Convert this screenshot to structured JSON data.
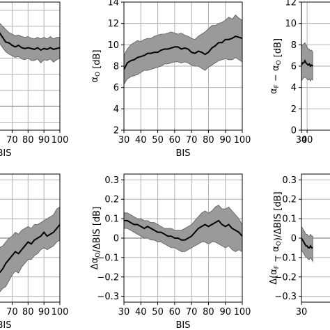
{
  "chart_data": [
    {
      "id": "top-left",
      "type": "area",
      "title": "",
      "xlabel": "BIS",
      "ylabel": "",
      "xlim": [
        58,
        100
      ],
      "ylim": [
        -3,
        13
      ],
      "xticks": [
        70,
        80,
        90,
        100
      ],
      "yticks": [],
      "grid": true,
      "x": [
        58,
        60,
        62,
        64,
        66,
        68,
        70,
        72,
        74,
        76,
        78,
        80,
        82,
        84,
        86,
        88,
        90,
        92,
        94,
        96,
        98,
        100
      ],
      "series": [
        {
          "mean": [
            9.8,
            9.6,
            9.2,
            8.6,
            8.0,
            7.9,
            7.6,
            7.4,
            7.6,
            7.3,
            7.2,
            7.3,
            7.2,
            7.1,
            7.3,
            7.0,
            7.2,
            7.1,
            7.3,
            7.1,
            7.2,
            7.3
          ],
          "upper": [
            11.0,
            10.7,
            10.4,
            10.0,
            9.6,
            9.2,
            9.0,
            8.8,
            8.9,
            8.7,
            8.6,
            8.7,
            8.5,
            8.4,
            8.6,
            8.4,
            8.6,
            8.4,
            8.7,
            8.4,
            8.6,
            8.6
          ],
          "lower": [
            8.6,
            8.4,
            7.9,
            7.3,
            6.8,
            6.5,
            6.3,
            6.1,
            6.2,
            5.9,
            5.8,
            6.0,
            5.7,
            5.7,
            5.9,
            5.4,
            5.8,
            5.7,
            5.9,
            5.5,
            5.8,
            6.0
          ]
        }
      ]
    },
    {
      "id": "top-middle",
      "type": "area",
      "title": "",
      "xlabel": "BIS",
      "ylabel": "αO [dB]",
      "xlim": [
        30,
        100
      ],
      "ylim": [
        2,
        14
      ],
      "xticks": [
        30,
        40,
        50,
        60,
        70,
        80,
        90,
        100
      ],
      "yticks": [
        2,
        4,
        6,
        8,
        10,
        12,
        14
      ],
      "grid": true,
      "x": [
        30,
        32,
        34,
        36,
        38,
        40,
        42,
        44,
        46,
        48,
        50,
        52,
        54,
        56,
        58,
        60,
        62,
        64,
        66,
        68,
        70,
        72,
        74,
        76,
        78,
        80,
        82,
        84,
        86,
        88,
        90,
        92,
        94,
        96,
        98,
        100
      ],
      "series": [
        {
          "mean": [
            7.7,
            8.3,
            8.5,
            8.6,
            8.8,
            8.9,
            9.0,
            9.2,
            9.2,
            9.3,
            9.3,
            9.5,
            9.6,
            9.6,
            9.7,
            9.8,
            9.8,
            9.6,
            9.7,
            9.6,
            9.3,
            9.2,
            9.4,
            9.3,
            9.1,
            9.3,
            9.7,
            9.9,
            10.2,
            10.2,
            10.5,
            10.5,
            10.6,
            10.8,
            10.7,
            10.6
          ],
          "upper": [
            9.0,
            9.6,
            10.0,
            10.2,
            10.4,
            10.3,
            10.5,
            10.6,
            10.6,
            10.8,
            10.9,
            11.0,
            11.0,
            11.1,
            11.2,
            11.1,
            11.0,
            11.1,
            10.9,
            10.8,
            10.6,
            10.5,
            10.8,
            11.0,
            11.2,
            11.5,
            11.8,
            11.8,
            12.0,
            12.1,
            12.3,
            12.6,
            12.4,
            12.8,
            12.5,
            12.3
          ],
          "lower": [
            6.3,
            6.8,
            7.0,
            7.1,
            7.2,
            7.4,
            7.6,
            7.6,
            7.7,
            7.8,
            7.9,
            8.0,
            8.2,
            8.2,
            8.3,
            8.4,
            8.4,
            8.3,
            8.4,
            8.3,
            8.1,
            8.0,
            8.0,
            7.8,
            7.6,
            7.9,
            8.1,
            8.3,
            8.5,
            8.6,
            8.7,
            8.6,
            8.6,
            8.8,
            8.6,
            8.4
          ]
        }
      ]
    },
    {
      "id": "top-right",
      "type": "area",
      "title": "",
      "xlabel": "",
      "ylabel": "αF − αO [dB]",
      "xlim": [
        30,
        100
      ],
      "ylim": [
        0,
        12
      ],
      "xticks": [
        30,
        40
      ],
      "yticks": [
        0,
        2,
        4,
        6,
        8,
        10,
        12
      ],
      "grid": true,
      "x": [
        30,
        32,
        34,
        36,
        38,
        40,
        42,
        44,
        46,
        48,
        50
      ],
      "series": [
        {
          "mean": [
            6.1,
            6.3,
            6.3,
            6.5,
            6.3,
            6.2,
            6.1,
            6.2,
            6.0,
            6.1,
            6.0
          ],
          "upper": [
            7.8,
            8.0,
            8.1,
            8.2,
            8.0,
            7.8,
            7.6,
            7.6,
            7.4,
            7.5,
            7.3
          ],
          "lower": [
            4.6,
            4.8,
            4.9,
            5.0,
            4.9,
            4.8,
            4.7,
            4.8,
            4.6,
            4.8,
            4.7
          ]
        }
      ]
    },
    {
      "id": "bottom-left",
      "type": "area",
      "title": "",
      "xlabel": "BIS",
      "ylabel": "",
      "xlim": [
        58,
        100
      ],
      "ylim": [
        -0.33,
        0.33
      ],
      "xticks": [
        70,
        80,
        90,
        100
      ],
      "yticks": [],
      "grid": true,
      "x": [
        58,
        60,
        62,
        64,
        66,
        68,
        70,
        72,
        74,
        76,
        78,
        80,
        82,
        84,
        86,
        88,
        90,
        92,
        94,
        96,
        98,
        100
      ],
      "series": [
        {
          "mean": [
            -0.22,
            -0.2,
            -0.18,
            -0.16,
            -0.13,
            -0.11,
            -0.09,
            -0.07,
            -0.08,
            -0.06,
            -0.04,
            -0.02,
            -0.03,
            -0.01,
            0.0,
            0.01,
            0.03,
            0.01,
            0.02,
            0.03,
            0.05,
            0.07
          ],
          "upper": [
            -0.08,
            -0.07,
            -0.05,
            -0.04,
            -0.02,
            0.0,
            0.01,
            0.03,
            0.02,
            0.04,
            0.05,
            0.06,
            0.05,
            0.07,
            0.07,
            0.08,
            0.09,
            0.1,
            0.11,
            0.12,
            0.15,
            0.16
          ],
          "lower": [
            -0.3,
            -0.29,
            -0.28,
            -0.26,
            -0.25,
            -0.22,
            -0.19,
            -0.17,
            -0.18,
            -0.15,
            -0.13,
            -0.11,
            -0.11,
            -0.09,
            -0.08,
            -0.06,
            -0.05,
            -0.06,
            -0.05,
            -0.04,
            -0.02,
            -0.01
          ]
        }
      ]
    },
    {
      "id": "bottom-middle",
      "type": "area",
      "title": "",
      "xlabel": "BIS",
      "ylabel": "ΔαO/ΔBIS [dB]",
      "xlim": [
        30,
        100
      ],
      "ylim": [
        -0.33,
        0.33
      ],
      "xticks": [
        30,
        40,
        50,
        60,
        70,
        80,
        90,
        100
      ],
      "yticks": [
        -0.3,
        -0.2,
        -0.1,
        0.0,
        0.1,
        0.2,
        0.3
      ],
      "grid": true,
      "x": [
        30,
        32,
        34,
        36,
        38,
        40,
        42,
        44,
        46,
        48,
        50,
        52,
        54,
        56,
        58,
        60,
        62,
        64,
        66,
        68,
        70,
        72,
        74,
        76,
        78,
        80,
        82,
        84,
        86,
        88,
        90,
        92,
        94,
        96,
        98,
        100
      ],
      "series": [
        {
          "mean": [
            0.09,
            0.09,
            0.08,
            0.07,
            0.07,
            0.06,
            0.05,
            0.06,
            0.05,
            0.04,
            0.03,
            0.03,
            0.02,
            0.01,
            0.01,
            0.0,
            0.0,
            -0.01,
            -0.01,
            0.0,
            0.01,
            0.03,
            0.05,
            0.06,
            0.07,
            0.06,
            0.07,
            0.08,
            0.09,
            0.07,
            0.06,
            0.07,
            0.05,
            0.04,
            0.03,
            0.01
          ],
          "upper": [
            0.13,
            0.13,
            0.12,
            0.11,
            0.1,
            0.1,
            0.09,
            0.09,
            0.08,
            0.08,
            0.07,
            0.06,
            0.05,
            0.05,
            0.05,
            0.04,
            0.04,
            0.04,
            0.05,
            0.06,
            0.07,
            0.09,
            0.11,
            0.13,
            0.14,
            0.13,
            0.14,
            0.16,
            0.17,
            0.15,
            0.15,
            0.16,
            0.14,
            0.12,
            0.1,
            0.07
          ],
          "lower": [
            0.05,
            0.05,
            0.04,
            0.03,
            0.02,
            0.01,
            0.0,
            0.0,
            -0.01,
            -0.01,
            -0.02,
            -0.02,
            -0.03,
            -0.04,
            -0.05,
            -0.05,
            -0.06,
            -0.07,
            -0.07,
            -0.06,
            -0.05,
            -0.04,
            -0.03,
            -0.02,
            -0.02,
            -0.03,
            -0.02,
            -0.02,
            -0.03,
            -0.04,
            -0.05,
            -0.04,
            -0.06,
            -0.07,
            -0.06,
            -0.07
          ]
        }
      ]
    },
    {
      "id": "bottom-right",
      "type": "area",
      "title": "",
      "xlabel": "",
      "ylabel": "Δ(αF − αO)/ΔBIS [dB]",
      "xlim": [
        30,
        100
      ],
      "ylim": [
        -0.33,
        0.33
      ],
      "xticks": [
        30
      ],
      "yticks": [
        -0.3,
        -0.2,
        -0.1,
        0.0,
        0.1,
        0.2,
        0.3
      ],
      "grid": true,
      "x": [
        30,
        32,
        34,
        36,
        38,
        40,
        42,
        44,
        46,
        48,
        50
      ],
      "series": [
        {
          "mean": [
            0.0,
            -0.01,
            -0.02,
            -0.03,
            -0.04,
            -0.04,
            -0.05,
            -0.05,
            -0.04,
            -0.05,
            -0.05
          ],
          "upper": [
            0.06,
            0.05,
            0.04,
            0.03,
            0.02,
            0.02,
            0.01,
            0.01,
            0.02,
            0.01,
            0.01
          ],
          "lower": [
            -0.06,
            -0.07,
            -0.08,
            -0.09,
            -0.1,
            -0.1,
            -0.11,
            -0.11,
            -0.1,
            -0.11,
            -0.12
          ]
        }
      ]
    }
  ],
  "colors": {
    "band": "#9a9a9a",
    "band_edge": "#5a5a5a",
    "line": "#000000",
    "grid": "#b0b0b0",
    "zero": "#888888"
  }
}
